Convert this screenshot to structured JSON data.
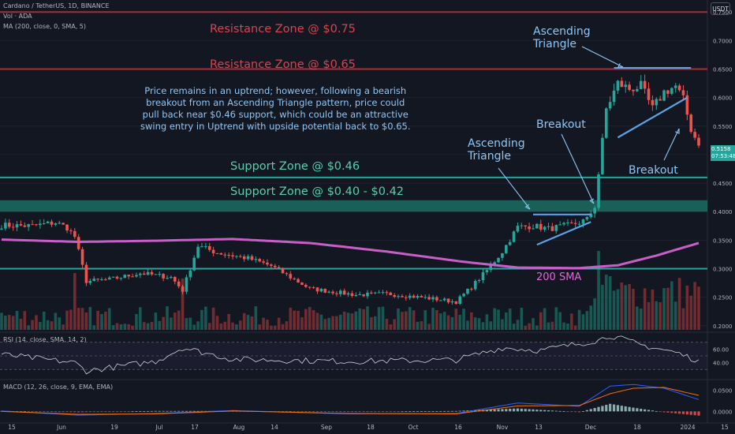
{
  "header": {
    "title": "Cardano / TetherUS, 1D, BINANCE",
    "vol_label": "Vol · ADA",
    "ma_label": "MA (200, close, 0, SMA, 5)",
    "unit": "USDT"
  },
  "rsi_panel": {
    "label": "RSI (14, close, SMA, 14, 2)",
    "ticks": [
      "60.00",
      "40.00"
    ]
  },
  "macd_panel": {
    "label": "MACD (12, 26, close, 9, EMA, EMA)",
    "ticks": [
      "0.0500",
      "0.0000"
    ]
  },
  "price_tag": {
    "value": "0.5158",
    "countdown": "07:53:48"
  },
  "annotations": {
    "resistance_075": "Resistance Zone @ $0.75",
    "resistance_065": "Resistance Zone @ $0.65",
    "support_046": "Support Zone @ $0.46",
    "support_040": "Support Zone @ $0.40 - $0.42",
    "ascending_triangle_top": "Ascending",
    "ascending_triangle_top2": "Triangle",
    "ascending_triangle_mid": "Ascending",
    "ascending_triangle_mid2": "Triangle",
    "breakout_1": "Breakout",
    "breakout_2": "Breakout",
    "sma_label": "200 SMA",
    "note_line1": "Price remains in an uptrend; however, following a bearish",
    "note_line2": "breakout from an Ascending Triangle pattern, price could",
    "note_line3": "pull back near $0.46 support, which could be an attractive",
    "note_line4": "swing entry in Uptrend with upside potential back to $0.65."
  },
  "colors": {
    "background": "#131722",
    "up": "#26a69a",
    "down": "#ef5350",
    "resistance": "#b22833",
    "support": "#26a69a",
    "sma": "#c85fc8",
    "trendline": "#5aa3e6",
    "rsi": "#d1d4dc",
    "macd": "#2962ff",
    "signal": "#ff6d00"
  },
  "chart_data": {
    "type": "candlestick",
    "symbol": "ADA/USDT",
    "timeframe": "1D",
    "y_range": [
      0.19,
      0.76
    ],
    "y_ticks": [
      "0.7500",
      "0.7000",
      "0.6500",
      "0.6000",
      "0.5500",
      "0.5000",
      "0.4500",
      "0.4000",
      "0.3500",
      "0.3000",
      "0.2500",
      "0.2000"
    ],
    "x_ticks": [
      "15",
      "Jun",
      "19",
      "Jul",
      "17",
      "Aug",
      "14",
      "Sep",
      "18",
      "Oct",
      "16",
      "Nov",
      "13",
      "Dec",
      "18",
      "2024",
      "15"
    ],
    "horizontal_levels": [
      {
        "kind": "resistance",
        "price": 0.75
      },
      {
        "kind": "resistance",
        "price": 0.65
      },
      {
        "kind": "support",
        "price": 0.46
      },
      {
        "kind": "support_zone",
        "from": 0.4,
        "to": 0.42
      },
      {
        "kind": "support",
        "price": 0.3
      }
    ],
    "anchors": [
      {
        "t": 0,
        "p": 0.376
      },
      {
        "t": 8,
        "p": 0.375
      },
      {
        "t": 14,
        "p": 0.381
      },
      {
        "t": 17,
        "p": 0.372
      },
      {
        "t": 19,
        "p": 0.356
      },
      {
        "t": 22,
        "p": 0.278
      },
      {
        "t": 28,
        "p": 0.281
      },
      {
        "t": 36,
        "p": 0.292
      },
      {
        "t": 44,
        "p": 0.285
      },
      {
        "t": 47,
        "p": 0.262
      },
      {
        "t": 51,
        "p": 0.34
      },
      {
        "t": 56,
        "p": 0.328
      },
      {
        "t": 64,
        "p": 0.318
      },
      {
        "t": 70,
        "p": 0.305
      },
      {
        "t": 80,
        "p": 0.265
      },
      {
        "t": 92,
        "p": 0.254
      },
      {
        "t": 100,
        "p": 0.256
      },
      {
        "t": 110,
        "p": 0.249
      },
      {
        "t": 118,
        "p": 0.242
      },
      {
        "t": 122,
        "p": 0.268
      },
      {
        "t": 126,
        "p": 0.297
      },
      {
        "t": 130,
        "p": 0.33
      },
      {
        "t": 134,
        "p": 0.373
      },
      {
        "t": 138,
        "p": 0.375
      },
      {
        "t": 142,
        "p": 0.37
      },
      {
        "t": 148,
        "p": 0.377
      },
      {
        "t": 152,
        "p": 0.386
      },
      {
        "t": 154,
        "p": 0.41
      },
      {
        "t": 157,
        "p": 0.58
      },
      {
        "t": 160,
        "p": 0.625
      },
      {
        "t": 163,
        "p": 0.615
      },
      {
        "t": 166,
        "p": 0.62
      },
      {
        "t": 169,
        "p": 0.58
      },
      {
        "t": 172,
        "p": 0.61
      },
      {
        "t": 175,
        "p": 0.62
      },
      {
        "t": 177,
        "p": 0.596
      },
      {
        "t": 179,
        "p": 0.545
      },
      {
        "t": 181,
        "p": 0.5158
      }
    ],
    "last_index": 181,
    "sma200": [
      {
        "t": 0,
        "p": 0.351
      },
      {
        "t": 20,
        "p": 0.347
      },
      {
        "t": 40,
        "p": 0.349
      },
      {
        "t": 60,
        "p": 0.352
      },
      {
        "t": 80,
        "p": 0.345
      },
      {
        "t": 100,
        "p": 0.33
      },
      {
        "t": 120,
        "p": 0.312
      },
      {
        "t": 134,
        "p": 0.302
      },
      {
        "t": 150,
        "p": 0.301
      },
      {
        "t": 160,
        "p": 0.306
      },
      {
        "t": 170,
        "p": 0.323
      },
      {
        "t": 181,
        "p": 0.345
      }
    ],
    "volume": {
      "baseline_max": 0.25,
      "spikes": [
        {
          "t": 19,
          "v": 0.72
        },
        {
          "t": 47,
          "v": 0.65
        },
        {
          "t": 155,
          "v": 1.0
        },
        {
          "t": 157,
          "v": 0.7
        }
      ]
    },
    "rsi": {
      "range": [
        20,
        80
      ],
      "levels": [
        70,
        50,
        30
      ],
      "anchors": [
        {
          "t": 0,
          "v": 52
        },
        {
          "t": 19,
          "v": 40
        },
        {
          "t": 22,
          "v": 28
        },
        {
          "t": 40,
          "v": 42
        },
        {
          "t": 47,
          "v": 62
        },
        {
          "t": 60,
          "v": 45
        },
        {
          "t": 90,
          "v": 42
        },
        {
          "t": 118,
          "v": 44
        },
        {
          "t": 130,
          "v": 62
        },
        {
          "t": 140,
          "v": 58
        },
        {
          "t": 155,
          "v": 73
        },
        {
          "t": 158,
          "v": 80
        },
        {
          "t": 166,
          "v": 66
        },
        {
          "t": 175,
          "v": 55
        },
        {
          "t": 181,
          "v": 43
        }
      ]
    },
    "macd": {
      "range": [
        -0.02,
        0.07
      ],
      "macd_line": [
        {
          "t": 0,
          "v": 0.001
        },
        {
          "t": 20,
          "v": -0.009
        },
        {
          "t": 40,
          "v": -0.005
        },
        {
          "t": 60,
          "v": 0.002
        },
        {
          "t": 90,
          "v": -0.006
        },
        {
          "t": 118,
          "v": -0.005
        },
        {
          "t": 134,
          "v": 0.02
        },
        {
          "t": 150,
          "v": 0.012
        },
        {
          "t": 158,
          "v": 0.06
        },
        {
          "t": 164,
          "v": 0.064
        },
        {
          "t": 172,
          "v": 0.055
        },
        {
          "t": 181,
          "v": 0.028
        }
      ],
      "signal_line": [
        {
          "t": 0,
          "v": 0.0
        },
        {
          "t": 20,
          "v": -0.007
        },
        {
          "t": 40,
          "v": -0.006
        },
        {
          "t": 60,
          "v": 0.001
        },
        {
          "t": 90,
          "v": -0.005
        },
        {
          "t": 118,
          "v": -0.006
        },
        {
          "t": 134,
          "v": 0.013
        },
        {
          "t": 150,
          "v": 0.014
        },
        {
          "t": 158,
          "v": 0.042
        },
        {
          "t": 164,
          "v": 0.055
        },
        {
          "t": 172,
          "v": 0.057
        },
        {
          "t": 181,
          "v": 0.038
        }
      ]
    }
  }
}
